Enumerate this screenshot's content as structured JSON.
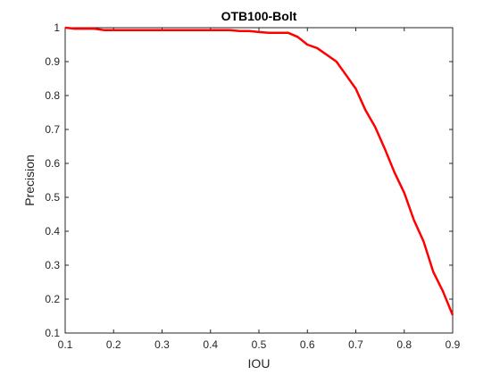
{
  "chart_data": {
    "type": "line",
    "title": "OTB100-Bolt",
    "xlabel": "IOU",
    "ylabel": "Precision",
    "xlim": [
      0.1,
      0.9
    ],
    "ylim": [
      0.1,
      1.0
    ],
    "xticks": [
      "0.1",
      "0.2",
      "0.3",
      "0.4",
      "0.5",
      "0.6",
      "0.7",
      "0.8",
      "0.9"
    ],
    "yticks": [
      "0.1",
      "0.2",
      "0.3",
      "0.4",
      "0.5",
      "0.6",
      "0.7",
      "0.8",
      "0.9",
      "1"
    ],
    "grid": false,
    "series": [
      {
        "color": "#ff0000",
        "x": [
          0.1,
          0.12,
          0.16,
          0.18,
          0.2,
          0.24,
          0.3,
          0.4,
          0.44,
          0.46,
          0.48,
          0.5,
          0.52,
          0.56,
          0.58,
          0.6,
          0.62,
          0.64,
          0.66,
          0.68,
          0.7,
          0.72,
          0.74,
          0.76,
          0.78,
          0.8,
          0.82,
          0.84,
          0.86,
          0.88,
          0.9
        ],
        "y": [
          1.0,
          0.997,
          0.997,
          0.993,
          0.993,
          0.993,
          0.993,
          0.993,
          0.993,
          0.99,
          0.99,
          0.987,
          0.985,
          0.985,
          0.973,
          0.95,
          0.94,
          0.92,
          0.9,
          0.86,
          0.82,
          0.757,
          0.707,
          0.643,
          0.573,
          0.513,
          0.433,
          0.37,
          0.28,
          0.223,
          0.153
        ]
      }
    ]
  }
}
